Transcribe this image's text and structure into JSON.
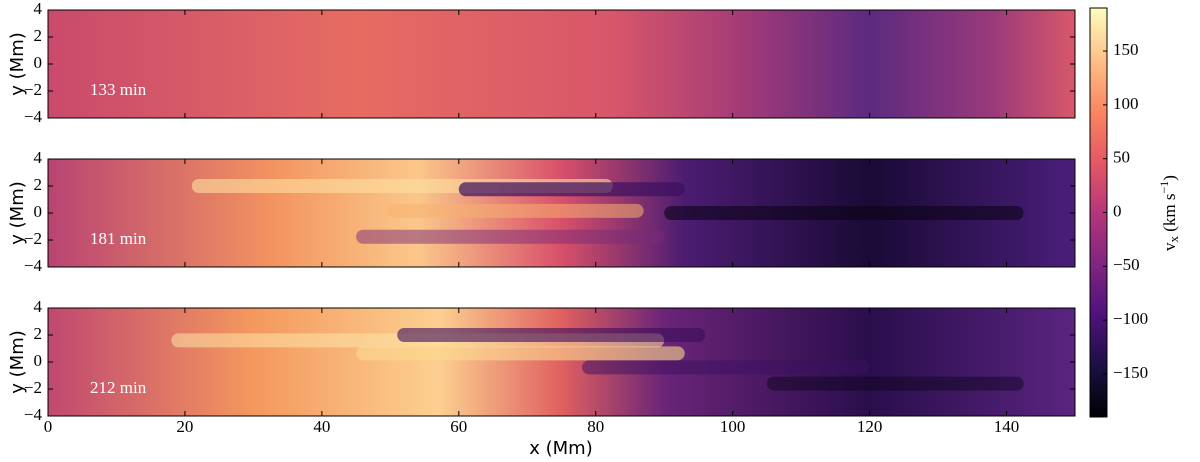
{
  "chart_data": {
    "type": "heatmap",
    "panels": [
      {
        "label": "133 min"
      },
      {
        "label": "181 min"
      },
      {
        "label": "212 min"
      }
    ],
    "xlabel": "x  (Mm)",
    "ylabel": "y  (Mm)",
    "xlim": [
      0,
      150
    ],
    "xticks": [
      0,
      20,
      40,
      60,
      80,
      100,
      120,
      140
    ],
    "ylim": [
      -4,
      4
    ],
    "yticks": [
      {
        "value": -4,
        "label": "−4"
      },
      {
        "value": -2,
        "label": "−2"
      },
      0,
      2,
      4
    ],
    "colorbar": {
      "colormap": "magma",
      "clim": [
        -190,
        190
      ],
      "ticks": [
        {
          "value": -150,
          "label": "−150"
        },
        {
          "value": -100,
          "label": "−100"
        },
        {
          "value": -50,
          "label": "−50"
        },
        0,
        50,
        100,
        150
      ],
      "label": {
        "base": "v",
        "sub": "x",
        "unit": " (km s",
        "sup": "−1",
        "close": ")"
      }
    }
  }
}
